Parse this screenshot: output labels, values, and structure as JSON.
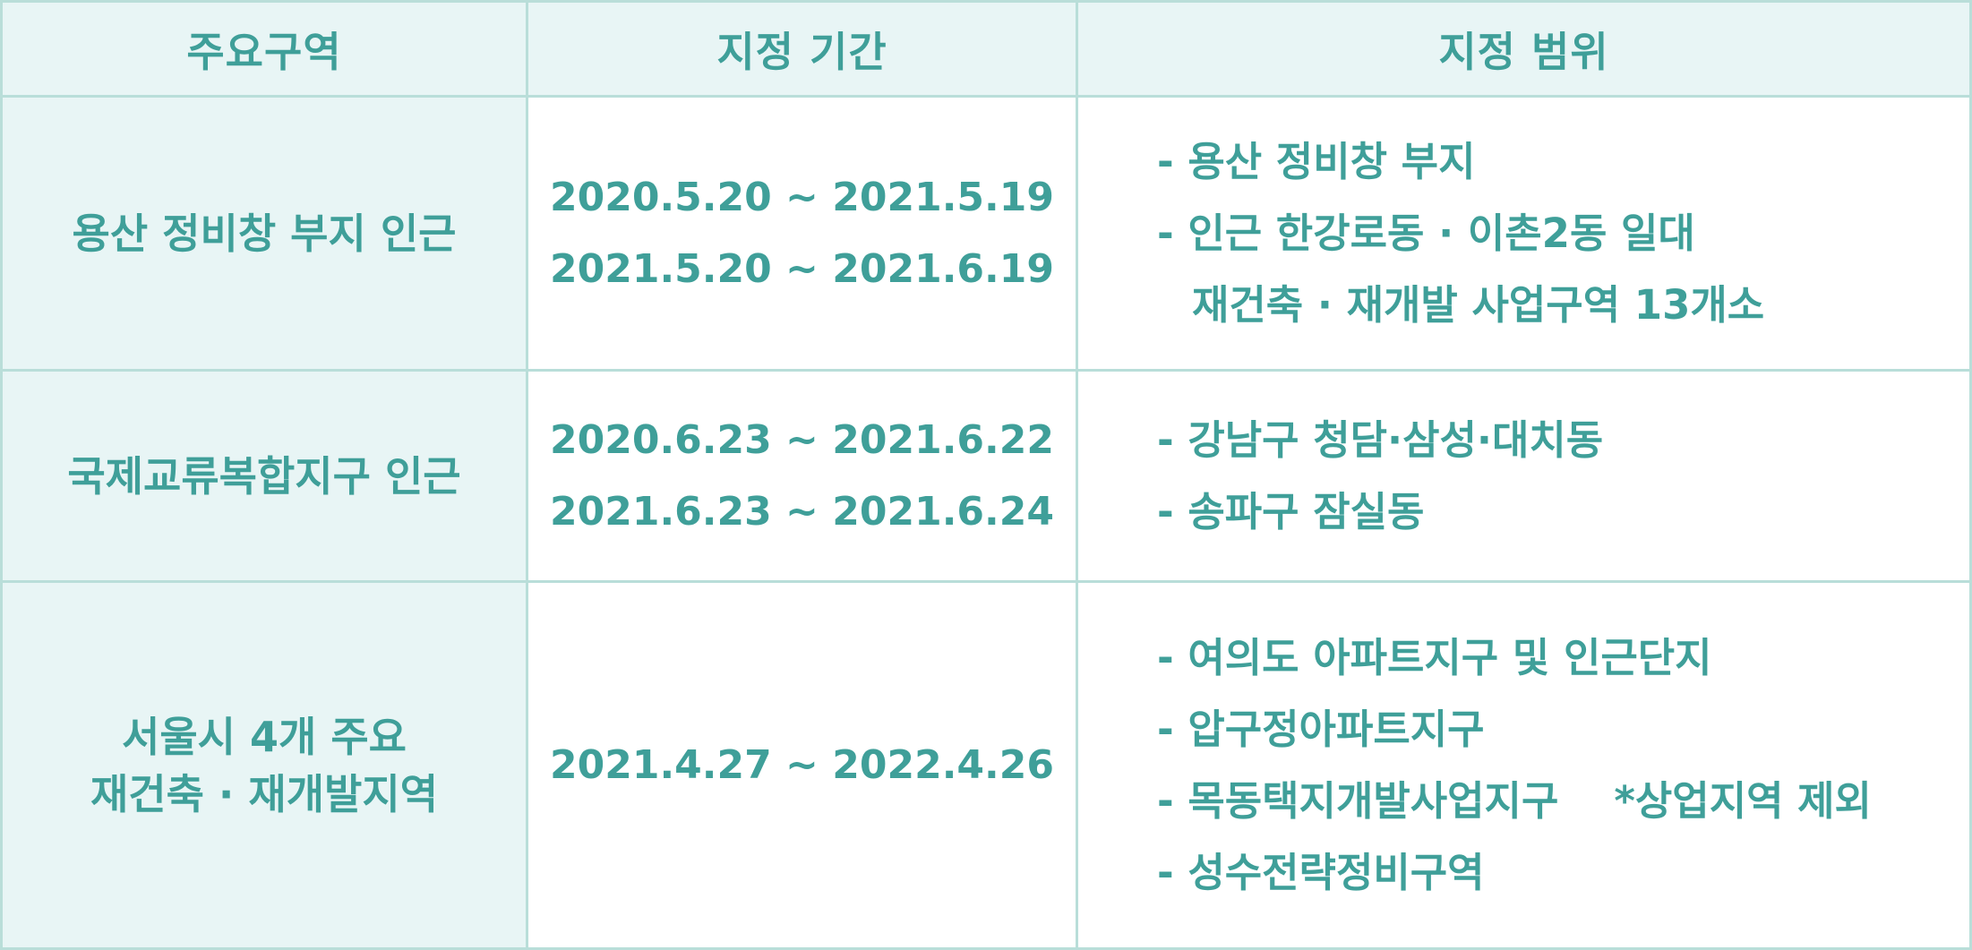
{
  "headers": {
    "area": "주요구역",
    "period": "지정 기간",
    "scope": "지정 범위"
  },
  "rows": [
    {
      "area": [
        "용산 정비창 부지 인근"
      ],
      "periods": [
        "2020.5.20 ~ 2021.5.19",
        "2021.5.20 ~ 2021.6.19"
      ],
      "scope": [
        "- 용산 정비창 부지",
        "- 인근 한강로동 · 이촌2동 일대",
        "재건축 · 재개발 사업구역 13개소"
      ]
    },
    {
      "area": [
        "국제교류복합지구 인근"
      ],
      "periods": [
        "2020.6.23 ~ 2021.6.22",
        "2021.6.23 ~ 2021.6.24"
      ],
      "scope": [
        "- 강남구 청담·삼성·대치동",
        "- 송파구 잠실동"
      ]
    },
    {
      "area": [
        "서울시 4개 주요",
        "재건축 · 재개발지역"
      ],
      "periods": [
        "2021.4.27 ~ 2022.4.26"
      ],
      "scope": [
        "- 여의도 아파트지구 및 인근단지",
        "- 압구정아파트지구",
        "- 목동택지개발사업지구",
        "- 성수전략정비구역"
      ],
      "scope_note": "*상업지역 제외"
    }
  ],
  "colors": {
    "text": "#3f9f99",
    "border": "#b9ded9",
    "shaded_bg": "#e8f5f5"
  }
}
